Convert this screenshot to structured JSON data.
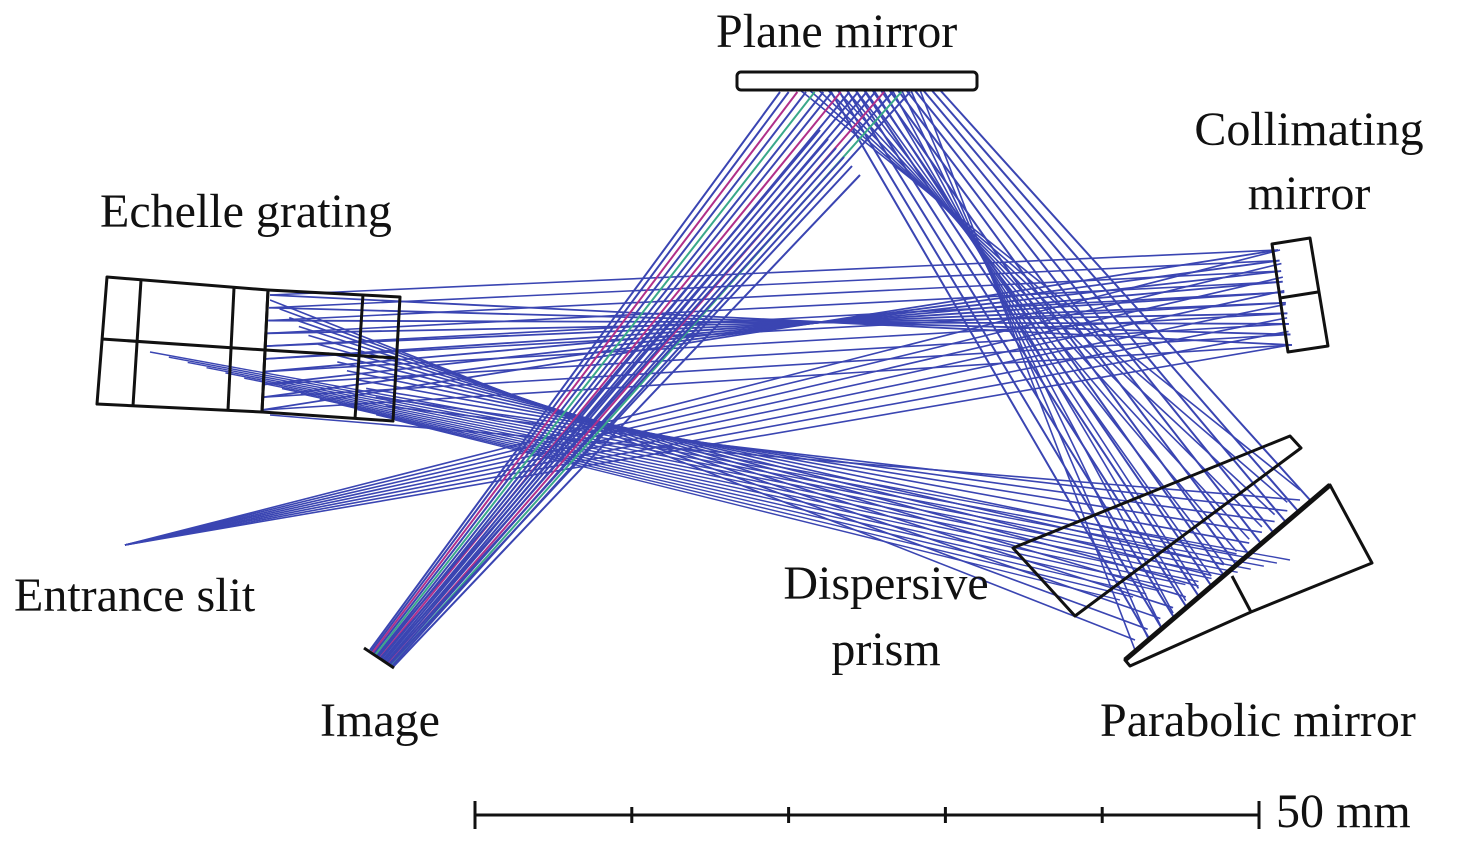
{
  "labels": {
    "plane_mirror": "Plane mirror",
    "collimating_mirror_line1": "Collimating",
    "collimating_mirror_line2": "mirror",
    "echelle_grating": "Echelle grating",
    "entrance_slit": "Entrance slit",
    "dispersive_prism_line1": "Dispersive",
    "dispersive_prism_line2": "prism",
    "image": "Image",
    "parabolic_mirror": "Parabolic mirror"
  },
  "scale_bar": {
    "label": "50 mm",
    "divisions": 5
  },
  "colors": {
    "ray": "#3a45b2",
    "ray_accent_1": "#b0308a",
    "ray_accent_2": "#3aa88a",
    "component": "#111111"
  }
}
